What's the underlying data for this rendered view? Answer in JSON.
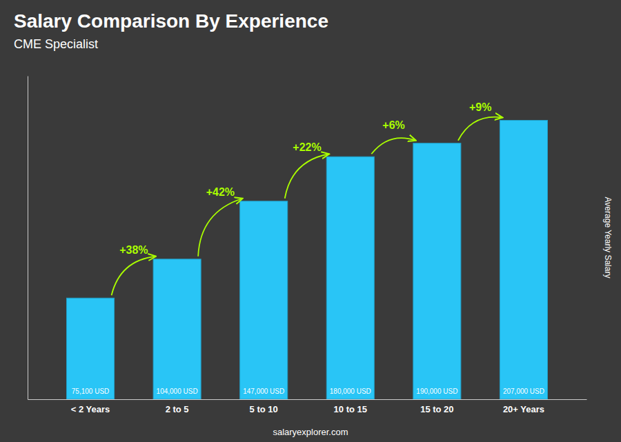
{
  "chart_data": {
    "type": "bar",
    "title": "Salary Comparison By Experience",
    "subtitle": "CME Specialist",
    "categories": [
      "< 2 Years",
      "2 to 5",
      "5 to 10",
      "10 to 15",
      "15 to 20",
      "20+ Years"
    ],
    "values": [
      75100,
      104000,
      147000,
      180000,
      190000,
      207000
    ],
    "value_labels": [
      "75,100 USD",
      "104,000 USD",
      "147,000 USD",
      "180,000 USD",
      "190,000 USD",
      "207,000 USD"
    ],
    "data_labels": true,
    "color": "#29c5f6",
    "annotations": [
      {
        "text": "+38%",
        "color": "#aaff00"
      },
      {
        "text": "+42%",
        "color": "#aaff00"
      },
      {
        "text": "+22%",
        "color": "#aaff00"
      },
      {
        "text": "+6%",
        "color": "#aaff00"
      },
      {
        "text": "+9%",
        "color": "#aaff00"
      }
    ],
    "ylabel": "Average Yearly Salary",
    "footer": "salaryexplorer.com",
    "ylim": [
      0,
      240000
    ],
    "yticks": [],
    "tick_labels": "x",
    "grid": false
  }
}
